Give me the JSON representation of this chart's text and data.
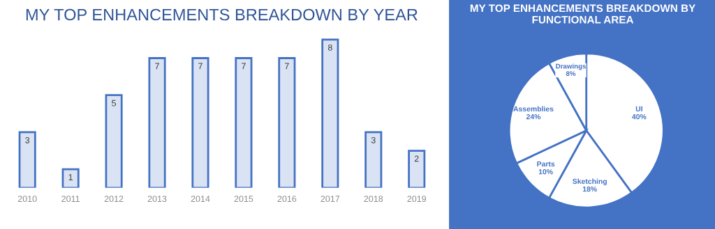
{
  "chart_data": [
    {
      "type": "bar",
      "title": "MY TOP ENHANCEMENTS BREAKDOWN BY YEAR",
      "categories": [
        "2010",
        "2011",
        "2012",
        "2013",
        "2014",
        "2015",
        "2016",
        "2017",
        "2018",
        "2019"
      ],
      "values": [
        3,
        1,
        5,
        7,
        7,
        7,
        7,
        8,
        3,
        2
      ],
      "color": "#dae3f3",
      "data_labels": true,
      "grid": false,
      "legend": false
    },
    {
      "type": "pie",
      "title": "MY TOP ENHANCEMENTS BREAKDOWN BY FUNCTIONAL AREA",
      "categories": [
        "UI",
        "Sketching",
        "Parts",
        "Assemblies",
        "Drawings"
      ],
      "values": [
        40,
        18,
        10,
        24,
        8
      ],
      "value_labels": [
        "40%",
        "18%",
        "10%",
        "24%",
        "8%"
      ],
      "colors": [
        "#ffffff",
        "#ffffff",
        "#ffffff",
        "#ffffff",
        "#ffffff"
      ],
      "legend": false
    }
  ]
}
